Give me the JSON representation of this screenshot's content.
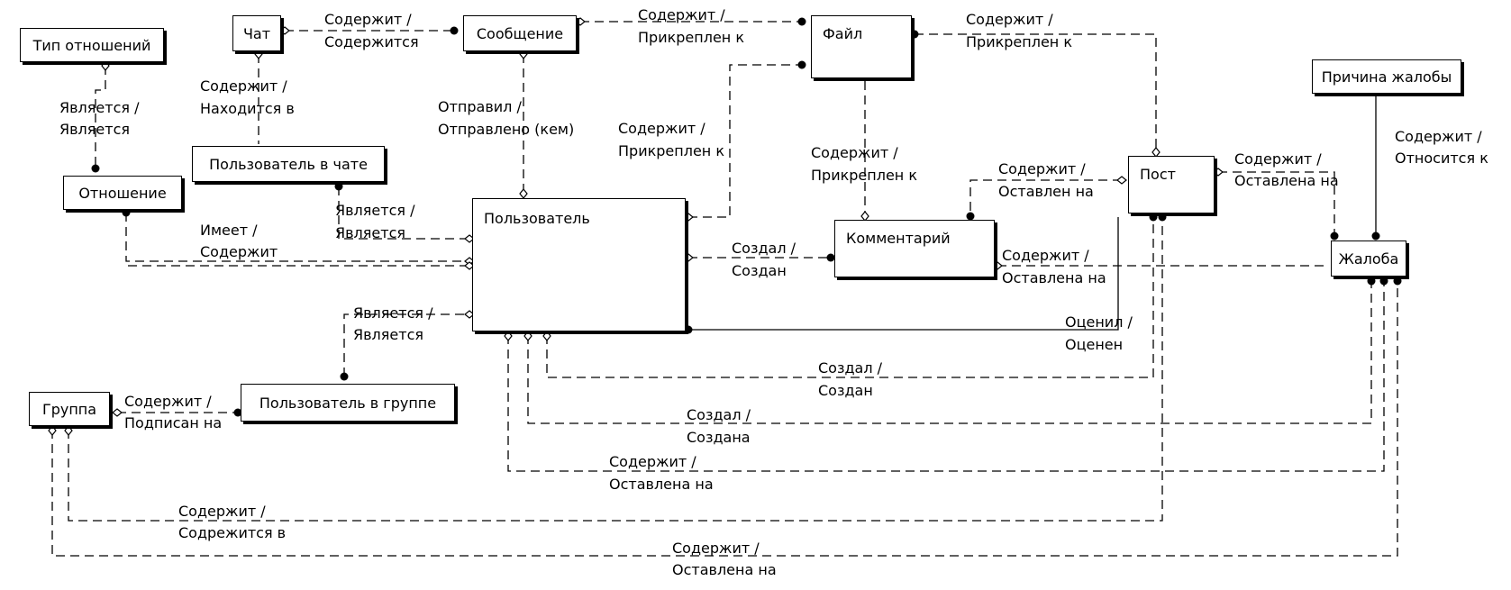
{
  "entities": {
    "relationship_type": "Тип отношений",
    "chat": "Чат",
    "message": "Сообщение",
    "file": "Файл",
    "complaint_reason": "Причина жалобы",
    "relationship": "Отношение",
    "chat_user": "Пользователь в чате",
    "user": "Пользователь",
    "comment": "Комментарий",
    "post": "Пост",
    "complaint": "Жалоба",
    "group": "Группа",
    "group_user": "Пользователь в группе"
  },
  "relations": {
    "chat_message": [
      "Содержит /",
      "Содержится"
    ],
    "message_file": [
      "Содержит /",
      "Прикреплен к"
    ],
    "file_post": [
      "Содержит /",
      "Прикреплен к"
    ],
    "type_relationship": [
      "Является /",
      "Является"
    ],
    "chat_chatuser": [
      "Содержит /",
      "Находится в"
    ],
    "message_user": [
      "Отправил /",
      "Отправлено (кем)"
    ],
    "file_user": [
      "Содержит /",
      "Прикреплен к"
    ],
    "file_comment": [
      "Содержит /",
      "Прикреплен к"
    ],
    "post_comment": [
      "Содержит /",
      "Оставлен на"
    ],
    "post_complaint": [
      "Содержит /",
      "Оставлена на"
    ],
    "reason_complaint": [
      "Содержит /",
      "Относится к"
    ],
    "chatuser_user": [
      "Является /",
      "Является"
    ],
    "relationship_user": [
      "Имеет /",
      "Содержит"
    ],
    "user_comment": [
      "Создал /",
      "Создан"
    ],
    "comment_complaint": [
      "Содержит /",
      "Оставлена на"
    ],
    "user_post_rated": [
      "Оценил /",
      "Оценен"
    ],
    "groupuser_user": [
      "Является /",
      "Является"
    ],
    "group_groupuser": [
      "Содержит /",
      "Подписан на"
    ],
    "user_post_created": [
      "Создал /",
      "Создан"
    ],
    "user_complaint_created": [
      "Создал /",
      "Создана"
    ],
    "user_complaint_left": [
      "Содержит /",
      "Оставлена на"
    ],
    "group_post": [
      "Содержит /",
      "Содрежится в"
    ],
    "group_complaint": [
      "Содержит /",
      "Оставлена на"
    ]
  }
}
